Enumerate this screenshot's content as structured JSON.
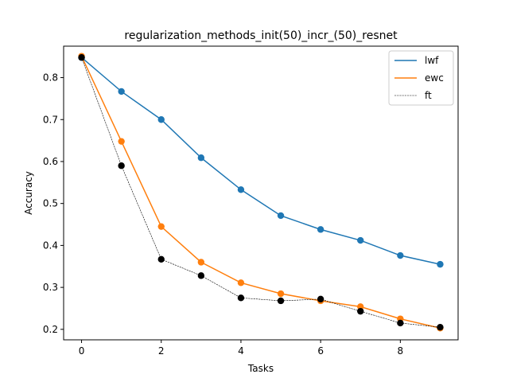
{
  "chart_data": {
    "type": "line",
    "title": "regularization_methods_init(50)_incr_(50)_resnet",
    "xlabel": "Tasks",
    "ylabel": "Accuracy",
    "x": [
      0,
      1,
      2,
      3,
      4,
      5,
      6,
      7,
      8,
      9
    ],
    "xlim": [
      -0.45,
      9.45
    ],
    "ylim": [
      0.175,
      0.875
    ],
    "xticks": [
      0,
      2,
      4,
      6,
      8
    ],
    "yticks": [
      0.2,
      0.3,
      0.4,
      0.5,
      0.6,
      0.7,
      0.8
    ],
    "xtick_labels": [
      "0",
      "2",
      "4",
      "6",
      "8"
    ],
    "ytick_labels": [
      "0.2",
      "0.3",
      "0.4",
      "0.5",
      "0.6",
      "0.7",
      "0.8"
    ],
    "grid": false,
    "legend_position": "top-right",
    "series": [
      {
        "name": "lwf",
        "color": "#1f77b4",
        "line_style": "solid",
        "marker_color": "#1f77b4",
        "values": [
          0.848,
          0.767,
          0.7,
          0.609,
          0.533,
          0.471,
          0.438,
          0.412,
          0.376,
          0.355
        ]
      },
      {
        "name": "ewc",
        "color": "#ff7f0e",
        "line_style": "solid",
        "marker_color": "#ff7f0e",
        "values": [
          0.851,
          0.648,
          0.445,
          0.36,
          0.311,
          0.285,
          0.268,
          0.254,
          0.225,
          0.203
        ]
      },
      {
        "name": "ft",
        "color": "#000000",
        "line_style": "dashed",
        "marker_color": "#000000",
        "values": [
          0.848,
          0.59,
          0.367,
          0.328,
          0.275,
          0.268,
          0.272,
          0.243,
          0.215,
          0.205
        ]
      }
    ]
  }
}
